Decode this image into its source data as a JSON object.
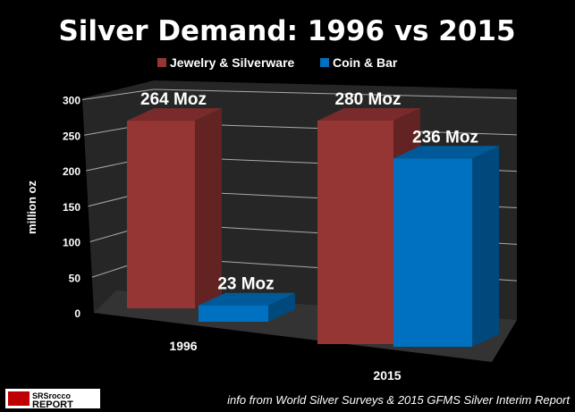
{
  "chart_data": {
    "type": "bar",
    "title": "Silver Demand:  1996 vs 2015",
    "categories": [
      "1996",
      "2015"
    ],
    "series": [
      {
        "name": "Jewelry & Silverware",
        "values": [
          264,
          280
        ],
        "labels": [
          "264 Moz",
          "280 Moz"
        ],
        "color": "#963634"
      },
      {
        "name": "Coin & Bar",
        "values": [
          23,
          236
        ],
        "labels": [
          "23 Moz",
          "236 Moz"
        ],
        "color": "#0070C0"
      }
    ],
    "ylabel": "million oz",
    "ylim": [
      0,
      300
    ],
    "yticks": [
      "0",
      "50",
      "100",
      "150",
      "200",
      "250",
      "300"
    ],
    "grid": true,
    "legend": "top",
    "style": "3d-column"
  },
  "source_note": "info from World Silver Surveys & 2015 GFMS Silver Interim Report",
  "logo": "SRSrocco REPORT"
}
